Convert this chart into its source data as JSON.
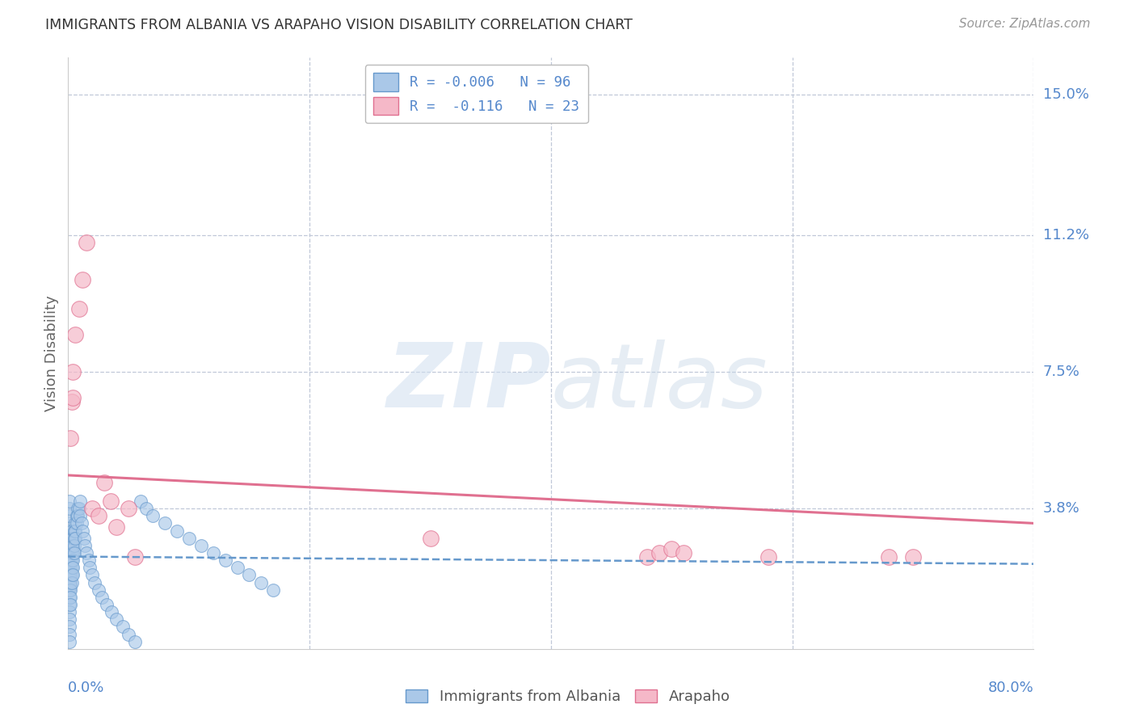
{
  "title": "IMMIGRANTS FROM ALBANIA VS ARAPAHO VISION DISABILITY CORRELATION CHART",
  "source": "Source: ZipAtlas.com",
  "ylabel": "Vision Disability",
  "xlim": [
    0.0,
    0.8
  ],
  "ylim": [
    0.0,
    0.16
  ],
  "watermark": "ZIPatlas",
  "ytick_vals": [
    0.038,
    0.075,
    0.112,
    0.15
  ],
  "ytick_labs": [
    "3.8%",
    "7.5%",
    "11.2%",
    "15.0%"
  ],
  "blue_color": "#6699cc",
  "blue_fill": "#aac8e8",
  "pink_color": "#e07090",
  "pink_fill": "#f5b8c8",
  "grid_color": "#c0c8d8",
  "axis_label_color": "#5588cc",
  "title_color": "#333333",
  "source_color": "#999999",
  "ylabel_color": "#666666",
  "blue_line_y": [
    0.025,
    0.023
  ],
  "pink_line_y": [
    0.047,
    0.034
  ],
  "blue_x": [
    0.001,
    0.001,
    0.001,
    0.001,
    0.001,
    0.001,
    0.001,
    0.001,
    0.001,
    0.001,
    0.001,
    0.001,
    0.001,
    0.001,
    0.001,
    0.001,
    0.001,
    0.001,
    0.001,
    0.001,
    0.0015,
    0.0015,
    0.0015,
    0.0015,
    0.0015,
    0.002,
    0.002,
    0.002,
    0.002,
    0.002,
    0.002,
    0.002,
    0.002,
    0.002,
    0.002,
    0.0025,
    0.0025,
    0.0025,
    0.003,
    0.003,
    0.003,
    0.003,
    0.003,
    0.003,
    0.003,
    0.003,
    0.004,
    0.004,
    0.004,
    0.004,
    0.004,
    0.004,
    0.005,
    0.005,
    0.005,
    0.005,
    0.006,
    0.006,
    0.006,
    0.007,
    0.007,
    0.008,
    0.008,
    0.009,
    0.01,
    0.01,
    0.011,
    0.012,
    0.013,
    0.014,
    0.015,
    0.017,
    0.018,
    0.02,
    0.022,
    0.025,
    0.028,
    0.032,
    0.036,
    0.04,
    0.045,
    0.05,
    0.055,
    0.06,
    0.065,
    0.07,
    0.08,
    0.09,
    0.1,
    0.11,
    0.12,
    0.13,
    0.14,
    0.15,
    0.16,
    0.17
  ],
  "blue_y": [
    0.03,
    0.028,
    0.026,
    0.024,
    0.022,
    0.02,
    0.018,
    0.016,
    0.014,
    0.012,
    0.01,
    0.008,
    0.006,
    0.004,
    0.002,
    0.032,
    0.034,
    0.036,
    0.038,
    0.04,
    0.025,
    0.023,
    0.021,
    0.019,
    0.017,
    0.03,
    0.028,
    0.026,
    0.024,
    0.022,
    0.02,
    0.018,
    0.016,
    0.014,
    0.012,
    0.028,
    0.026,
    0.024,
    0.032,
    0.03,
    0.028,
    0.026,
    0.024,
    0.022,
    0.02,
    0.018,
    0.03,
    0.028,
    0.026,
    0.024,
    0.022,
    0.02,
    0.032,
    0.03,
    0.028,
    0.026,
    0.034,
    0.032,
    0.03,
    0.036,
    0.034,
    0.038,
    0.036,
    0.038,
    0.04,
    0.036,
    0.034,
    0.032,
    0.03,
    0.028,
    0.026,
    0.024,
    0.022,
    0.02,
    0.018,
    0.016,
    0.014,
    0.012,
    0.01,
    0.008,
    0.006,
    0.004,
    0.002,
    0.04,
    0.038,
    0.036,
    0.034,
    0.032,
    0.03,
    0.028,
    0.026,
    0.024,
    0.022,
    0.02,
    0.018,
    0.016
  ],
  "pink_x": [
    0.002,
    0.003,
    0.004,
    0.004,
    0.006,
    0.009,
    0.012,
    0.015,
    0.02,
    0.025,
    0.03,
    0.035,
    0.04,
    0.05,
    0.055,
    0.3,
    0.48,
    0.49,
    0.5,
    0.51,
    0.58,
    0.68,
    0.7
  ],
  "pink_y": [
    0.057,
    0.067,
    0.075,
    0.068,
    0.085,
    0.092,
    0.1,
    0.11,
    0.038,
    0.036,
    0.045,
    0.04,
    0.033,
    0.038,
    0.025,
    0.03,
    0.025,
    0.026,
    0.027,
    0.026,
    0.025,
    0.025,
    0.025
  ]
}
